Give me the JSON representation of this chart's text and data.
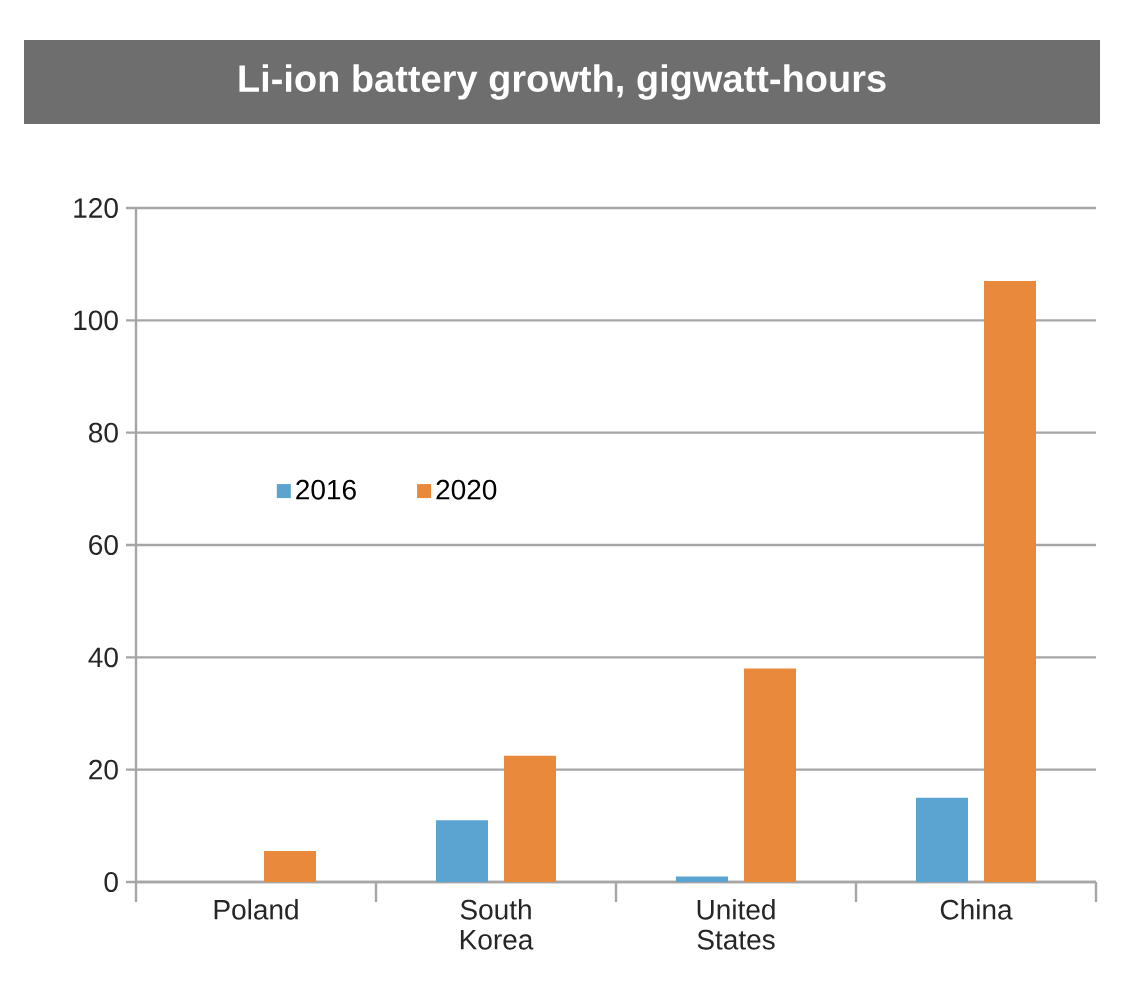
{
  "chart_data": {
    "type": "bar",
    "title": "Li-ion battery growth, gigwatt-hours",
    "categories": [
      "Poland",
      "South Korea",
      "United States",
      "China"
    ],
    "series": [
      {
        "name": "2016",
        "color": "#5ba3d0",
        "values": [
          0,
          11,
          1,
          15
        ]
      },
      {
        "name": "2020",
        "color": "#e8893c",
        "values": [
          5.5,
          22.5,
          38,
          107
        ]
      }
    ],
    "ylim": [
      0,
      120
    ],
    "yticks": [
      0,
      20,
      40,
      60,
      80,
      100,
      120
    ],
    "grid": "y",
    "legend": "left"
  }
}
